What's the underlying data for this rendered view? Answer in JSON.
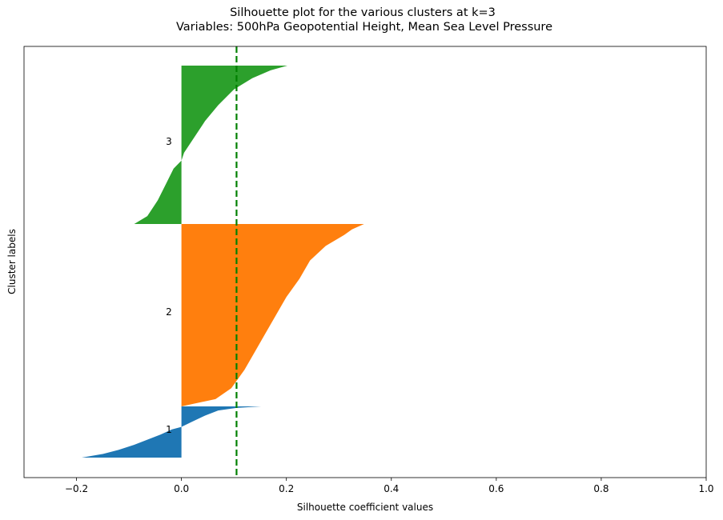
{
  "chart_data": {
    "type": "bar",
    "orientation": "horizontal",
    "title": "Silhouette plot for the various clusters at k=3",
    "subtitle": "Variables: 500hPa Geopotential Height, Mean Sea Level Pressure",
    "xlabel": "Silhouette coefficient values",
    "ylabel": "Cluster labels",
    "xlim": [
      -0.3,
      1.0
    ],
    "xticks": [
      -0.2,
      0.0,
      0.2,
      0.4,
      0.6,
      0.8,
      1.0
    ],
    "xtick_labels": [
      "−0.2",
      "0.0",
      "0.2",
      "0.4",
      "0.6",
      "0.8",
      "1.0"
    ],
    "yticks_shown": false,
    "grid": false,
    "average_silhouette_line": {
      "x": 0.105,
      "color": "#008000",
      "style": "dashed"
    },
    "clusters": [
      {
        "label": "1",
        "color": "#1f77b4",
        "profile": [
          {
            "frac": 0.0,
            "value": 0.152
          },
          {
            "frac": 0.03,
            "value": 0.105
          },
          {
            "frac": 0.08,
            "value": 0.07
          },
          {
            "frac": 0.18,
            "value": 0.045
          },
          {
            "frac": 0.3,
            "value": 0.02
          },
          {
            "frac": 0.4,
            "value": 0.0
          },
          {
            "frac": 0.45,
            "value": -0.018
          },
          {
            "frac": 0.55,
            "value": -0.04
          },
          {
            "frac": 0.65,
            "value": -0.065
          },
          {
            "frac": 0.75,
            "value": -0.09
          },
          {
            "frac": 0.85,
            "value": -0.12
          },
          {
            "frac": 0.93,
            "value": -0.15
          },
          {
            "frac": 1.0,
            "value": -0.19
          }
        ]
      },
      {
        "label": "2",
        "color": "#ff7f0e",
        "profile": [
          {
            "frac": 0.0,
            "value": 0.348
          },
          {
            "frac": 0.03,
            "value": 0.325
          },
          {
            "frac": 0.06,
            "value": 0.31
          },
          {
            "frac": 0.12,
            "value": 0.275
          },
          {
            "frac": 0.2,
            "value": 0.245
          },
          {
            "frac": 0.3,
            "value": 0.225
          },
          {
            "frac": 0.4,
            "value": 0.2
          },
          {
            "frac": 0.5,
            "value": 0.18
          },
          {
            "frac": 0.6,
            "value": 0.16
          },
          {
            "frac": 0.7,
            "value": 0.14
          },
          {
            "frac": 0.8,
            "value": 0.12
          },
          {
            "frac": 0.9,
            "value": 0.095
          },
          {
            "frac": 0.96,
            "value": 0.065
          },
          {
            "frac": 1.0,
            "value": 0.0
          }
        ]
      },
      {
        "label": "3",
        "color": "#2ca02c",
        "profile": [
          {
            "frac": 0.0,
            "value": 0.202
          },
          {
            "frac": 0.03,
            "value": 0.17
          },
          {
            "frac": 0.08,
            "value": 0.135
          },
          {
            "frac": 0.15,
            "value": 0.1
          },
          {
            "frac": 0.25,
            "value": 0.07
          },
          {
            "frac": 0.35,
            "value": 0.045
          },
          {
            "frac": 0.45,
            "value": 0.025
          },
          {
            "frac": 0.55,
            "value": 0.005
          },
          {
            "frac": 0.6,
            "value": 0.0
          },
          {
            "frac": 0.65,
            "value": -0.015
          },
          {
            "frac": 0.75,
            "value": -0.03
          },
          {
            "frac": 0.85,
            "value": -0.045
          },
          {
            "frac": 0.95,
            "value": -0.065
          },
          {
            "frac": 1.0,
            "value": -0.09
          }
        ]
      }
    ]
  }
}
